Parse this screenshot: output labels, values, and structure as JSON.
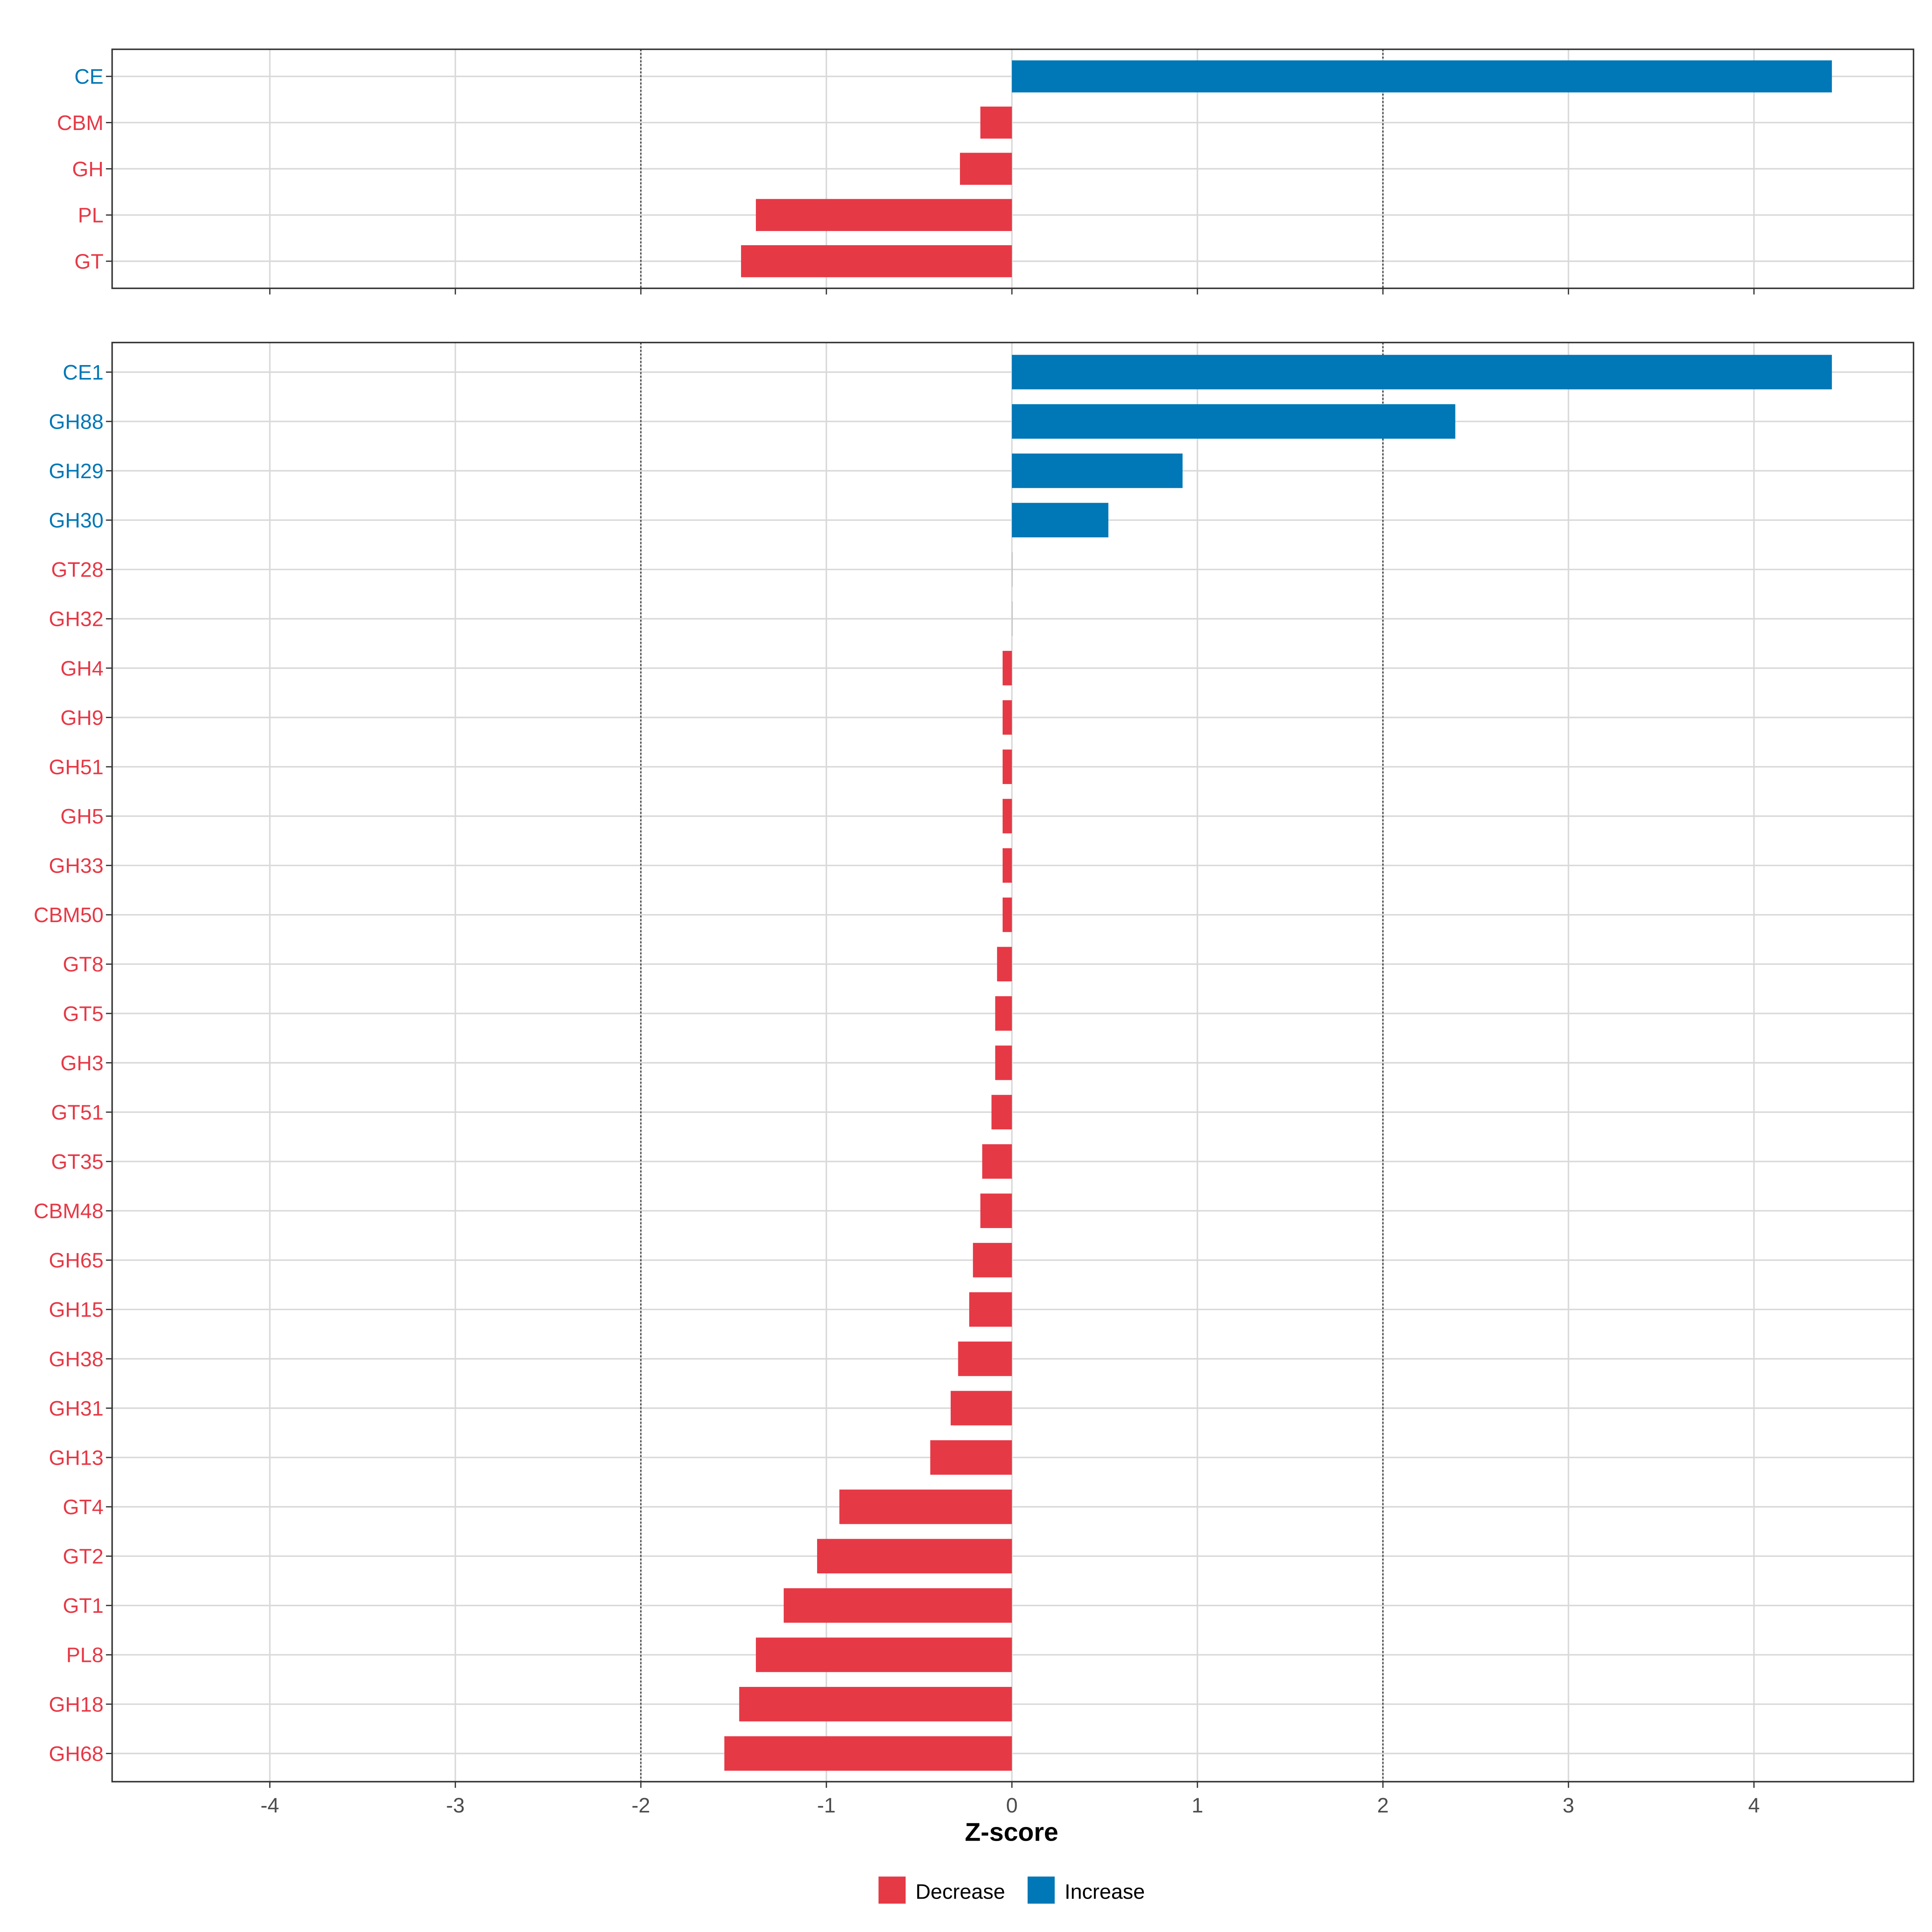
{
  "chart_data": [
    {
      "type": "bar",
      "orientation": "horizontal",
      "panel": "top",
      "categories": [
        "CE",
        "CBM",
        "GH",
        "PL",
        "GT"
      ],
      "values": [
        4.42,
        -0.17,
        -0.28,
        -1.38,
        -1.46
      ],
      "xlim": [
        -4.85,
        4.86
      ],
      "reference_lines": [
        -2,
        2
      ],
      "grid": true
    },
    {
      "type": "bar",
      "orientation": "horizontal",
      "panel": "bottom",
      "categories": [
        "CE1",
        "GH88",
        "GH29",
        "GH30",
        "GT28",
        "GH32",
        "GH4",
        "GH9",
        "GH51",
        "GH5",
        "GH33",
        "CBM50",
        "GT8",
        "GT5",
        "GH3",
        "GT51",
        "GT35",
        "CBM48",
        "GH65",
        "GH15",
        "GH38",
        "GH31",
        "GH13",
        "GT4",
        "GT2",
        "GT1",
        "PL8",
        "GH18",
        "GH68"
      ],
      "values": [
        4.42,
        2.39,
        0.92,
        0.52,
        0,
        0,
        -0.05,
        -0.05,
        -0.05,
        -0.05,
        -0.05,
        -0.05,
        -0.08,
        -0.09,
        -0.09,
        -0.11,
        -0.16,
        -0.17,
        -0.21,
        -0.23,
        -0.29,
        -0.33,
        -0.44,
        -0.93,
        -1.05,
        -1.23,
        -1.38,
        -1.47,
        -1.55
      ],
      "xlim": [
        -4.85,
        4.86
      ],
      "reference_lines": [
        -2,
        2
      ],
      "grid": true
    }
  ],
  "axis": {
    "xlabel": "Z-score",
    "ticks": [
      -4,
      -3,
      -2,
      -1,
      0,
      1,
      2,
      3,
      4
    ],
    "tick_labels": [
      "-4",
      "-3",
      "-2",
      "-1",
      "0",
      "1",
      "2",
      "3",
      "4"
    ]
  },
  "legend": {
    "placement": "bottom",
    "entries": [
      {
        "label": "Decrease",
        "color": "#E63946"
      },
      {
        "label": "Increase",
        "color": "#0077B6"
      }
    ]
  },
  "colors": {
    "decrease": "#E63946",
    "increase": "#0077B6",
    "grid": "#D9D9D9"
  }
}
